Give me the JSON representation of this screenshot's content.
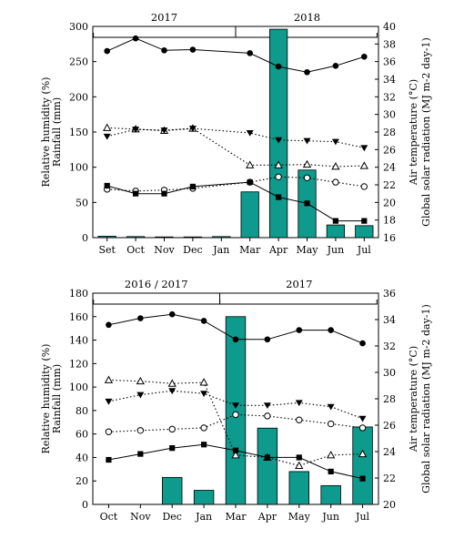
{
  "colors": {
    "bar_fill": "#0e9a8c",
    "bar_stroke": "#000000",
    "ink": "#000000",
    "open_fill": "#ffffff"
  },
  "chart_data": [
    {
      "type": "bar",
      "panel": "top",
      "categories": [
        "Set",
        "Oct",
        "Nov",
        "Dec",
        "Jan",
        "Mar",
        "Apr",
        "May",
        "Jun",
        "Jul"
      ],
      "periods": [
        {
          "label": "2017",
          "from": "Set",
          "to": "Jan"
        },
        {
          "label": "2018",
          "from": "Mar",
          "to": "Jul"
        }
      ],
      "left_axis": {
        "label_line1": "Relative humidity (%)",
        "label_line2": "Rainfall (mm)",
        "range": [
          0,
          300
        ],
        "ticks": [
          "0",
          "50",
          "100",
          "150",
          "200",
          "250",
          "300"
        ]
      },
      "right_axis": {
        "label_line1": "Air temperature (°C)",
        "label_line2": "Global solar radiation (MJ m-2 day-1)",
        "range": [
          16,
          40
        ],
        "ticks": [
          "16",
          "18",
          "20",
          "22",
          "24",
          "26",
          "28",
          "30",
          "32",
          "34",
          "36",
          "38",
          "40"
        ]
      },
      "grid": false,
      "series": [
        {
          "kind": "bar",
          "axis": "left",
          "values": [
            2,
            1.5,
            1,
            1,
            1.5,
            65,
            296,
            96,
            18,
            17
          ]
        },
        {
          "kind": "line",
          "axis": "left",
          "marker": "filled-circle",
          "dash": "solid",
          "values": [
            265,
            283,
            266,
            267,
            null,
            262,
            243,
            235,
            244,
            257
          ]
        },
        {
          "kind": "line",
          "axis": "left",
          "marker": "open-triangle",
          "dash": "dotted",
          "values": [
            156,
            154,
            152,
            155,
            null,
            103,
            103,
            104,
            101,
            102
          ]
        },
        {
          "kind": "line",
          "axis": "right",
          "marker": "filled-triangle-down",
          "dash": "dotted",
          "values": [
            27.5,
            28.3,
            28.2,
            28.4,
            null,
            27.9,
            27.1,
            27.0,
            26.9,
            26.2
          ]
        },
        {
          "kind": "line",
          "axis": "right",
          "marker": "open-circle",
          "dash": "dotted",
          "values": [
            21.5,
            21.3,
            21.4,
            21.6,
            null,
            22.3,
            22.9,
            22.8,
            22.3,
            21.8
          ]
        },
        {
          "kind": "line",
          "axis": "right",
          "marker": "filled-square",
          "dash": "solid",
          "values": [
            21.9,
            21.0,
            21.0,
            21.8,
            null,
            22.3,
            20.6,
            19.9,
            17.9,
            17.9
          ]
        }
      ]
    },
    {
      "type": "bar",
      "panel": "bottom",
      "categories": [
        "Oct",
        "Nov",
        "Dec",
        "Jan",
        "Mar",
        "Apr",
        "May",
        "Jun",
        "Jul"
      ],
      "periods": [
        {
          "label": "2016 / 2017",
          "from": "Oct",
          "to": "Jan"
        },
        {
          "label": "2017",
          "from": "Mar",
          "to": "Jul"
        }
      ],
      "left_axis": {
        "label_line1": "Relative humidity (%)",
        "label_line2": "Rainfall (mm)",
        "range": [
          0,
          180
        ],
        "ticks": [
          "0",
          "20",
          "40",
          "60",
          "80",
          "100",
          "120",
          "140",
          "160",
          "180"
        ]
      },
      "right_axis": {
        "label_line1": "Air temperature (°C)",
        "label_line2": "Global solar radiation (MJ m-2 day-1)",
        "range": [
          20,
          36
        ],
        "ticks": [
          "20",
          "22",
          "24",
          "26",
          "28",
          "30",
          "32",
          "34",
          "36"
        ]
      },
      "grid": false,
      "series": [
        {
          "kind": "bar",
          "axis": "left",
          "values": [
            0,
            0,
            23,
            12,
            160,
            65,
            28,
            16,
            66
          ]
        },
        {
          "kind": "line",
          "axis": "right",
          "marker": "filled-circle",
          "dash": "solid",
          "values": [
            33.6,
            34.1,
            34.4,
            33.9,
            32.5,
            32.5,
            33.2,
            33.2,
            32.2
          ]
        },
        {
          "kind": "line",
          "axis": "left",
          "marker": "open-triangle",
          "dash": "dotted",
          "values": [
            106,
            105,
            103,
            104,
            42,
            40,
            33,
            42,
            43
          ]
        },
        {
          "kind": "line",
          "axis": "right",
          "marker": "filled-triangle-down",
          "dash": "dotted",
          "values": [
            27.8,
            28.3,
            28.6,
            28.4,
            27.5,
            27.5,
            27.7,
            27.4,
            26.5
          ]
        },
        {
          "kind": "line",
          "axis": "right",
          "marker": "open-circle",
          "dash": "dotted",
          "values": [
            25.5,
            25.6,
            25.7,
            25.8,
            26.8,
            26.7,
            26.4,
            26.1,
            25.8
          ]
        },
        {
          "kind": "line",
          "axis": "left",
          "marker": "filled-square",
          "dash": "solid",
          "values": [
            38,
            43,
            48,
            51,
            46,
            40,
            40,
            28,
            22
          ]
        }
      ]
    }
  ]
}
